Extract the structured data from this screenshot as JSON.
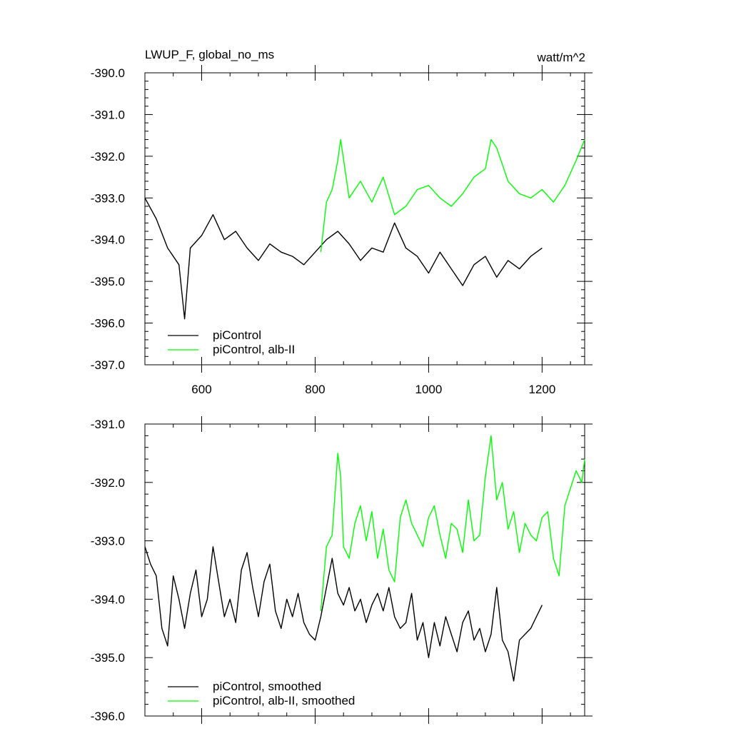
{
  "chart_data": [
    {
      "type": "line",
      "title": "LWUP_F, global_no_ms",
      "units": "watt/m^2",
      "xlim": [
        500,
        1275
      ],
      "ylim": [
        -397.0,
        -390.0
      ],
      "x_ticks": [
        600,
        800,
        1000,
        1200
      ],
      "y_ticks": [
        "-397.0",
        "-396.0",
        "-395.0",
        "-394.0",
        "-393.0",
        "-392.0",
        "-391.0",
        "-390.0"
      ],
      "legend_position": "bottom-left",
      "grid": false,
      "series": [
        {
          "name": "piControl",
          "color": "#000000",
          "x": [
            500,
            520,
            540,
            560,
            570,
            580,
            600,
            620,
            640,
            660,
            680,
            700,
            720,
            740,
            760,
            780,
            800,
            820,
            840,
            860,
            880,
            900,
            920,
            940,
            960,
            980,
            1000,
            1020,
            1040,
            1060,
            1080,
            1100,
            1120,
            1140,
            1160,
            1180,
            1200
          ],
          "y": [
            -393.0,
            -393.5,
            -394.2,
            -394.6,
            -395.9,
            -394.2,
            -393.9,
            -393.4,
            -394.0,
            -393.8,
            -394.2,
            -394.5,
            -394.1,
            -394.3,
            -394.4,
            -394.6,
            -394.3,
            -394.0,
            -393.8,
            -394.1,
            -394.5,
            -394.2,
            -394.3,
            -393.6,
            -394.2,
            -394.4,
            -394.8,
            -394.3,
            -394.7,
            -395.1,
            -394.6,
            -394.4,
            -394.9,
            -394.5,
            -394.7,
            -394.4,
            -394.2
          ]
        },
        {
          "name": "piControl, alb-II",
          "color": "#00ff00",
          "x": [
            810,
            820,
            830,
            840,
            845,
            860,
            880,
            900,
            920,
            940,
            960,
            980,
            1000,
            1020,
            1040,
            1060,
            1080,
            1100,
            1110,
            1120,
            1140,
            1160,
            1180,
            1200,
            1220,
            1240,
            1260,
            1275
          ],
          "y": [
            -394.3,
            -393.1,
            -392.8,
            -392.1,
            -391.6,
            -393.0,
            -392.6,
            -393.1,
            -392.5,
            -393.4,
            -393.2,
            -392.8,
            -392.7,
            -393.0,
            -393.2,
            -392.9,
            -392.5,
            -392.3,
            -391.6,
            -391.8,
            -392.6,
            -392.9,
            -393.0,
            -392.8,
            -393.1,
            -392.7,
            -392.1,
            -391.6
          ]
        }
      ]
    },
    {
      "type": "line",
      "xlim": [
        500,
        1275
      ],
      "ylim": [
        -396.0,
        -391.0
      ],
      "y_ticks": [
        "-396.0",
        "-395.0",
        "-394.0",
        "-393.0",
        "-392.0",
        "-391.0"
      ],
      "legend_position": "bottom-left",
      "grid": false,
      "series": [
        {
          "name": "piControl, smoothed",
          "color": "#000000",
          "x": [
            500,
            510,
            520,
            530,
            540,
            550,
            560,
            570,
            580,
            590,
            600,
            610,
            620,
            630,
            640,
            650,
            660,
            670,
            680,
            690,
            700,
            710,
            720,
            730,
            740,
            750,
            760,
            770,
            780,
            790,
            800,
            810,
            820,
            830,
            840,
            850,
            860,
            870,
            880,
            890,
            900,
            910,
            920,
            930,
            940,
            950,
            960,
            970,
            980,
            990,
            1000,
            1010,
            1020,
            1030,
            1040,
            1050,
            1060,
            1070,
            1080,
            1090,
            1100,
            1110,
            1120,
            1130,
            1140,
            1150,
            1160,
            1170,
            1180,
            1190,
            1200
          ],
          "y": [
            -393.1,
            -393.4,
            -393.6,
            -394.5,
            -394.8,
            -393.6,
            -394.0,
            -394.5,
            -393.9,
            -393.5,
            -394.3,
            -394.0,
            -393.1,
            -393.7,
            -394.3,
            -394.0,
            -394.4,
            -393.5,
            -393.2,
            -393.8,
            -394.3,
            -393.7,
            -393.4,
            -394.2,
            -394.5,
            -394.0,
            -394.3,
            -393.9,
            -394.4,
            -394.6,
            -394.7,
            -394.3,
            -393.8,
            -393.3,
            -393.9,
            -394.1,
            -393.8,
            -394.2,
            -394.0,
            -394.4,
            -394.1,
            -393.9,
            -394.2,
            -393.8,
            -394.3,
            -394.5,
            -394.4,
            -393.9,
            -394.7,
            -394.4,
            -395.0,
            -394.4,
            -394.8,
            -394.3,
            -394.6,
            -394.9,
            -394.4,
            -394.2,
            -394.7,
            -394.5,
            -394.9,
            -394.6,
            -393.8,
            -394.7,
            -394.9,
            -395.4,
            -394.7,
            -394.6,
            -394.5,
            -394.3,
            -394.1
          ]
        },
        {
          "name": "piControl, alb-II, smoothed",
          "color": "#00ff00",
          "x": [
            810,
            820,
            830,
            840,
            845,
            850,
            860,
            870,
            880,
            890,
            900,
            910,
            920,
            930,
            940,
            950,
            960,
            970,
            980,
            990,
            1000,
            1010,
            1020,
            1030,
            1040,
            1050,
            1060,
            1070,
            1080,
            1090,
            1100,
            1110,
            1120,
            1130,
            1140,
            1150,
            1160,
            1170,
            1180,
            1190,
            1200,
            1210,
            1220,
            1230,
            1240,
            1250,
            1260,
            1270,
            1275
          ],
          "y": [
            -394.2,
            -393.1,
            -392.9,
            -391.5,
            -391.9,
            -393.1,
            -393.3,
            -392.7,
            -392.4,
            -393.0,
            -392.5,
            -393.3,
            -392.8,
            -393.5,
            -393.7,
            -392.6,
            -392.3,
            -392.7,
            -392.9,
            -393.1,
            -392.6,
            -392.4,
            -392.9,
            -393.3,
            -392.7,
            -392.8,
            -393.2,
            -392.3,
            -393.0,
            -392.9,
            -391.9,
            -391.2,
            -392.3,
            -392.0,
            -392.8,
            -392.5,
            -393.2,
            -392.7,
            -392.9,
            -393.0,
            -392.6,
            -392.5,
            -393.3,
            -393.6,
            -392.4,
            -392.1,
            -391.8,
            -392.0,
            -391.6
          ]
        }
      ]
    }
  ]
}
